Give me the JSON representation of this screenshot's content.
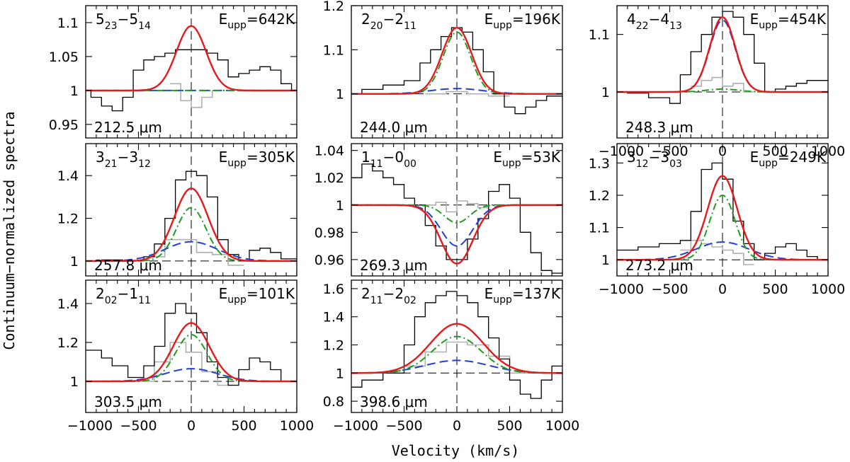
{
  "figure": {
    "xlabel": "Velocity (km/s)",
    "ylabel": "Continuum−normalized spectra",
    "colors": {
      "observed": "#000000",
      "residual": "#b0b0b0",
      "total_fit": "#e41a1c",
      "broad_component": "#1f9b1f",
      "narrow_component": "#1f3fd6",
      "reference": "#000000"
    }
  },
  "chart_data": [
    {
      "type": "line",
      "id": "p523",
      "transition": {
        "j1": "5",
        "s1": "23",
        "j2": "5",
        "s2": "14"
      },
      "eupp_label": "E",
      "eupp_sub": "upp",
      "eupp_value": "=642K",
      "wavelength_label": "212.5 μm",
      "xlim": [
        -1000,
        1000
      ],
      "ylim": [
        0.93,
        1.125
      ],
      "xticks": [],
      "xtick_labels": [],
      "yticks": [
        0.95,
        1,
        1.05,
        1.1
      ],
      "ytick_labels": [
        "0.95",
        "1",
        "1.05",
        "1.1"
      ],
      "observed_step": {
        "edges": [
          -1100,
          -950,
          -850,
          -750,
          -650,
          -550,
          -450,
          -350,
          -250,
          -150,
          -50,
          50,
          150,
          250,
          350,
          450,
          550,
          650,
          750,
          850,
          950,
          1050
        ],
        "values": [
          1.0,
          0.99,
          0.977,
          0.97,
          0.99,
          1.03,
          1.045,
          1.05,
          1.055,
          1.06,
          1.06,
          1.06,
          1.055,
          1.045,
          1.02,
          1.025,
          1.03,
          1.035,
          1.03,
          1.01,
          1.0
        ]
      },
      "residual_step": {
        "edges": [
          -200,
          -100,
          0,
          100,
          200,
          300
        ],
        "values": [
          1.01,
          0.985,
          0.975,
          0.99,
          1.0
        ]
      },
      "total_fit": {
        "amp": 0.095,
        "sigma": 140
      },
      "broad": {
        "amp": 0.0,
        "sigma": 140
      },
      "narrow": {
        "amp": 0.0,
        "sigma": 250
      }
    },
    {
      "type": "line",
      "id": "p220",
      "transition": {
        "j1": "2",
        "s1": "20",
        "j2": "2",
        "s2": "11"
      },
      "eupp_label": "E",
      "eupp_sub": "upp",
      "eupp_value": "=196K",
      "wavelength_label": "244.0 μm",
      "xlim": [
        -1000,
        1000
      ],
      "ylim": [
        0.9,
        1.2
      ],
      "xticks": [],
      "xtick_labels": [],
      "yticks": [
        1,
        1.1,
        1.2
      ],
      "ytick_labels": [
        "1",
        "1.1",
        "1.2"
      ],
      "observed_step": {
        "edges": [
          -1100,
          -900,
          -700,
          -500,
          -350,
          -250,
          -150,
          -50,
          50,
          150,
          250,
          350,
          450,
          550,
          650,
          750,
          850,
          1050
        ],
        "values": [
          1.0,
          1.01,
          1.02,
          1.03,
          1.07,
          1.1,
          1.13,
          1.15,
          1.14,
          1.1,
          1.05,
          1.0,
          0.97,
          0.955,
          0.97,
          0.985,
          0.995
        ]
      },
      "residual_step": {
        "edges": [
          -300,
          -100,
          100,
          300,
          500
        ],
        "values": [
          1.0,
          1.005,
          1.0,
          0.995
        ]
      },
      "total_fit": {
        "amp": 0.15,
        "sigma": 140
      },
      "broad": {
        "amp": 0.14,
        "sigma": 130
      },
      "narrow": {
        "amp": 0.012,
        "sigma": 250
      }
    },
    {
      "type": "line",
      "id": "p422",
      "transition": {
        "j1": "4",
        "s1": "22",
        "j2": "4",
        "s2": "13"
      },
      "eupp_label": "E",
      "eupp_sub": "upp",
      "eupp_value": "=454K",
      "wavelength_label": "248.3 μm",
      "xlim": [
        -1000,
        1000
      ],
      "ylim": [
        0.92,
        1.15
      ],
      "xticks": [
        -1000,
        -500,
        0,
        500,
        1000
      ],
      "xtick_labels": [
        "−1000",
        "−500",
        "0",
        "500",
        "1000"
      ],
      "yticks": [
        1,
        1.1
      ],
      "ytick_labels": [
        "1",
        "1.1"
      ],
      "observed_step": {
        "edges": [
          -1100,
          -900,
          -700,
          -500,
          -400,
          -300,
          -200,
          -100,
          0,
          100,
          200,
          300,
          400,
          500,
          600,
          700,
          800,
          1050
        ],
        "values": [
          1.0,
          0.998,
          0.99,
          0.98,
          1.03,
          1.07,
          1.1,
          1.13,
          1.14,
          1.13,
          1.1,
          1.05,
          1.0,
          1.005,
          1.01,
          1.015,
          1.02
        ]
      },
      "residual_step": {
        "edges": [
          -300,
          -200,
          -100,
          0,
          100,
          200,
          300
        ],
        "values": [
          1.01,
          1.02,
          1.025,
          1.01,
          1.015,
          1.0
        ]
      },
      "total_fit": {
        "amp": 0.13,
        "sigma": 120
      },
      "broad": {
        "amp": 0.005,
        "sigma": 150
      },
      "narrow": {
        "amp": 0.125,
        "sigma": 120
      }
    },
    {
      "type": "line",
      "id": "p321",
      "transition": {
        "j1": "3",
        "s1": "21",
        "j2": "3",
        "s2": "12"
      },
      "eupp_label": "E",
      "eupp_sub": "upp",
      "eupp_value": "=305K",
      "wavelength_label": "257.8 μm",
      "xlim": [
        -1000,
        1000
      ],
      "ylim": [
        0.93,
        1.55
      ],
      "xticks": [],
      "xtick_labels": [],
      "yticks": [
        1,
        1.2,
        1.4
      ],
      "ytick_labels": [
        "1",
        "1.2",
        "1.4"
      ],
      "observed_step": {
        "edges": [
          -1100,
          -850,
          -650,
          -450,
          -350,
          -250,
          -150,
          -50,
          50,
          150,
          250,
          350,
          450,
          550,
          650,
          750,
          850,
          1050
        ],
        "values": [
          1.0,
          1.005,
          1.0,
          1.02,
          1.08,
          1.2,
          1.38,
          1.42,
          1.4,
          1.3,
          1.1,
          1.03,
          1.0,
          1.05,
          1.06,
          1.04,
          1.01
        ]
      },
      "residual_step": {
        "edges": [
          -400,
          -250,
          -100,
          50,
          200,
          350,
          500
        ],
        "values": [
          1.02,
          1.1,
          1.1,
          1.04,
          1.03,
          0.98
        ]
      },
      "total_fit": {
        "amp": 0.34,
        "sigma": 160
      },
      "broad": {
        "amp": 0.25,
        "sigma": 140
      },
      "narrow": {
        "amp": 0.09,
        "sigma": 250
      }
    },
    {
      "type": "line",
      "id": "p111",
      "transition": {
        "j1": "1",
        "s1": "11",
        "j2": "0",
        "s2": "00"
      },
      "eupp_label": "E",
      "eupp_sub": "upp",
      "eupp_value": "=53K",
      "wavelength_label": "269.3 μm",
      "xlim": [
        -1000,
        1000
      ],
      "ylim": [
        0.948,
        1.045
      ],
      "xticks": [],
      "xtick_labels": [],
      "yticks": [
        0.96,
        0.98,
        1,
        1.02,
        1.04
      ],
      "ytick_labels": [
        "0.96",
        "0.98",
        "1",
        "1.02",
        "1.04"
      ],
      "observed_step": {
        "edges": [
          -1100,
          -900,
          -800,
          -700,
          -600,
          -500,
          -400,
          -300,
          -200,
          -100,
          0,
          100,
          200,
          300,
          400,
          500,
          600,
          700,
          800,
          900,
          1050
        ],
        "values": [
          1.02,
          1.03,
          1.025,
          1.02,
          1.015,
          1.005,
          1.0,
          0.985,
          0.97,
          0.96,
          0.96,
          0.975,
          0.99,
          1.01,
          1.015,
          1.005,
          0.98,
          0.965,
          0.952,
          0.95
        ]
      },
      "residual_step": {
        "edges": [
          -300,
          -200,
          -100,
          0,
          100,
          200,
          300
        ],
        "values": [
          1.0,
          1.002,
          0.995,
          1.003,
          1.001,
          0.998
        ]
      },
      "total_fit": {
        "amp": -0.043,
        "sigma": 150
      },
      "broad": {
        "amp": -0.013,
        "sigma": 120
      },
      "narrow": {
        "amp": -0.03,
        "sigma": 150
      }
    },
    {
      "type": "line",
      "id": "p312",
      "transition": {
        "j1": "3",
        "s1": "12",
        "j2": "3",
        "s2": "03"
      },
      "eupp_label": "E",
      "eupp_sub": "upp",
      "eupp_value": "=249K",
      "wavelength_label": "273.2 μm",
      "xlim": [
        -1000,
        1000
      ],
      "ylim": [
        0.95,
        1.36
      ],
      "xticks": [
        -1000,
        -500,
        0,
        500,
        1000
      ],
      "xtick_labels": [
        "−1000",
        "−500",
        "0",
        "500",
        "1000"
      ],
      "yticks": [
        1,
        1.1,
        1.2,
        1.3
      ],
      "ytick_labels": [
        "1",
        "1.1",
        "1.2",
        "1.3"
      ],
      "observed_step": {
        "edges": [
          -1100,
          -800,
          -600,
          -400,
          -300,
          -200,
          -100,
          0,
          100,
          200,
          300,
          400,
          500,
          600,
          700,
          800,
          900,
          1050
        ],
        "values": [
          1.03,
          1.04,
          1.05,
          1.06,
          1.15,
          1.28,
          1.3,
          1.25,
          1.12,
          1.05,
          1.0,
          1.02,
          1.04,
          1.05,
          1.03,
          1.01,
          1.0
        ]
      },
      "residual_step": {
        "edges": [
          -400,
          -300,
          -200,
          -100,
          0,
          100,
          200,
          300
        ],
        "values": [
          1.03,
          1.06,
          1.05,
          1.04,
          1.03,
          1.02,
          0.985
        ]
      },
      "total_fit": {
        "amp": 0.26,
        "sigma": 140
      },
      "broad": {
        "amp": 0.2,
        "sigma": 120
      },
      "narrow": {
        "amp": 0.055,
        "sigma": 250
      }
    },
    {
      "type": "line",
      "id": "p202",
      "transition": {
        "j1": "2",
        "s1": "02",
        "j2": "1",
        "s2": "11"
      },
      "eupp_label": "E",
      "eupp_sub": "upp",
      "eupp_value": "=101K",
      "wavelength_label": "303.5 μm",
      "xlim": [
        -1000,
        1000
      ],
      "ylim": [
        0.84,
        1.52
      ],
      "xticks": [
        -1000,
        -500,
        0,
        500,
        1000
      ],
      "xtick_labels": [
        "−1000",
        "−500",
        "0",
        "500",
        "1000"
      ],
      "yticks": [
        1,
        1.2,
        1.4
      ],
      "ytick_labels": [
        "1",
        "1.2",
        "1.4"
      ],
      "observed_step": {
        "edges": [
          -1100,
          -850,
          -750,
          -600,
          -450,
          -350,
          -250,
          -150,
          -50,
          50,
          150,
          250,
          350,
          450,
          550,
          650,
          750,
          850,
          1050
        ],
        "values": [
          1.16,
          1.12,
          1.08,
          1.02,
          1.08,
          1.18,
          1.35,
          1.4,
          1.35,
          1.25,
          1.1,
          1.02,
          0.98,
          1.06,
          1.12,
          1.1,
          1.06,
          1.0
        ]
      },
      "residual_step": {
        "edges": [
          -500,
          -350,
          -200,
          -50,
          100,
          250,
          400
        ],
        "values": [
          1.0,
          1.1,
          1.2,
          1.15,
          1.05,
          0.98
        ]
      },
      "total_fit": {
        "amp": 0.3,
        "sigma": 170
      },
      "broad": {
        "amp": 0.24,
        "sigma": 150
      },
      "narrow": {
        "amp": 0.065,
        "sigma": 250
      }
    },
    {
      "type": "line",
      "id": "p211",
      "transition": {
        "j1": "2",
        "s1": "11",
        "j2": "2",
        "s2": "02"
      },
      "eupp_label": "E",
      "eupp_sub": "upp",
      "eupp_value": "=137K",
      "wavelength_label": "398.6 μm",
      "xlim": [
        -1000,
        1000
      ],
      "ylim": [
        0.72,
        1.66
      ],
      "xticks": [
        -1000,
        -500,
        0,
        500,
        1000
      ],
      "xtick_labels": [
        "−1000",
        "−500",
        "0",
        "500",
        "1000"
      ],
      "yticks": [
        0.8,
        1,
        1.2,
        1.4,
        1.6
      ],
      "ytick_labels": [
        "0.8",
        "1",
        "1.2",
        "1.4",
        "1.6"
      ],
      "observed_step": {
        "edges": [
          -1100,
          -900,
          -700,
          -500,
          -400,
          -300,
          -200,
          -100,
          0,
          100,
          200,
          300,
          400,
          500,
          600,
          700,
          800,
          900,
          1050
        ],
        "values": [
          0.9,
          0.95,
          1.0,
          1.2,
          1.4,
          1.5,
          1.55,
          1.58,
          1.55,
          1.5,
          1.4,
          1.25,
          1.1,
          0.95,
          0.85,
          0.82,
          0.95,
          1.05
        ]
      },
      "residual_step": {
        "edges": [
          -500,
          -300,
          -100,
          100,
          300,
          500,
          700
        ],
        "values": [
          1.05,
          1.15,
          1.22,
          1.2,
          1.12,
          1.0
        ]
      },
      "total_fit": {
        "amp": 0.35,
        "sigma": 250
      },
      "broad": {
        "amp": 0.26,
        "sigma": 230
      },
      "narrow": {
        "amp": 0.09,
        "sigma": 300
      }
    }
  ]
}
